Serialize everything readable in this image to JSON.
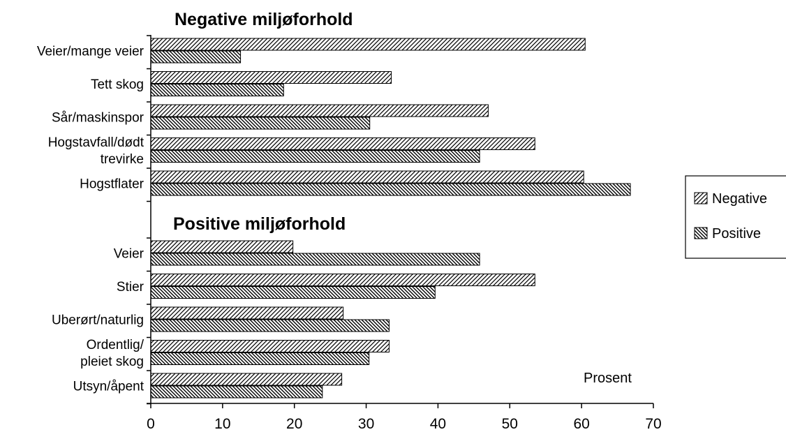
{
  "chart_data": {
    "type": "bar",
    "orientation": "horizontal",
    "groups": [
      {
        "title": "Negative miljøforhold",
        "categories": [
          "Veier/mange veier",
          "Tett skog",
          "Sår/maskinspor",
          "Hogstavfall/dødt trevirke",
          "Hogstflater"
        ],
        "category_lines": [
          [
            "Veier/mange veier"
          ],
          [
            "Tett skog"
          ],
          [
            "Sår/maskinspor"
          ],
          [
            "Hogstavfall/dødt",
            "trevirke"
          ],
          [
            "Hogstflater"
          ]
        ],
        "series": [
          {
            "name": "Negative",
            "values": [
              60.5,
              33.5,
              47,
              53.5,
              60.3
            ]
          },
          {
            "name": "Positive",
            "values": [
              12.5,
              18.5,
              30.5,
              45.8,
              66.8
            ]
          }
        ]
      },
      {
        "title": "Positive miljøforhold",
        "categories": [
          "Veier",
          "Stier",
          "Uberørt/naturlig",
          "Ordentlig/ pleiet skog",
          "Utsyn/åpent"
        ],
        "category_lines": [
          [
            "Veier"
          ],
          [
            "Stier"
          ],
          [
            "Uberørt/naturlig"
          ],
          [
            "Ordentlig/",
            "pleiet skog"
          ],
          [
            "Utsyn/åpent"
          ]
        ],
        "series": [
          {
            "name": "Negative",
            "values": [
              19.8,
              53.5,
              26.8,
              33.2,
              26.6
            ]
          },
          {
            "name": "Positive",
            "values": [
              45.8,
              39.6,
              33.2,
              30.4,
              23.9
            ]
          }
        ]
      }
    ],
    "legend": {
      "entries": [
        "Negative",
        "Positive"
      ],
      "position": "right"
    },
    "x_axis": {
      "label": "Prosent",
      "range": [
        0,
        70
      ],
      "ticks": [
        "0",
        "10",
        "20",
        "30",
        "40",
        "50",
        "60",
        "70"
      ]
    },
    "grid": false
  }
}
